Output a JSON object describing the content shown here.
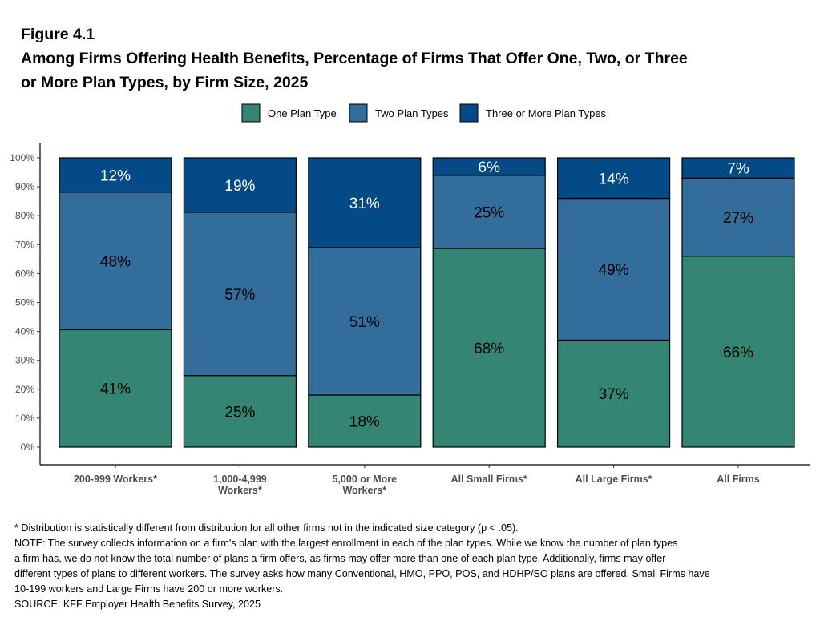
{
  "title_lines": [
    "Figure 4.1",
    "Among Firms Offering Health Benefits, Percentage of Firms That Offer One, Two, or Three",
    "or More Plan Types, by Firm Size, 2025"
  ],
  "notes": [
    "* Distribution is statistically different from distribution for all other firms not in the indicated size category (p < .05).",
    "NOTE: The survey collects information on a firm's plan with the largest enrollment in each of the plan types. While we know the number of plan types",
    "a firm has, we do not know the total number of plans a firm offers, as firms may offer more than one of each plan type. Additionally, firms may offer",
    "different types of plans to different workers. The survey asks how many Conventional, HMO, PPO, POS, and HDHP/SO plans are offered. Small Firms have",
    "10-199 workers and Large Firms have 200 or more workers.",
    "SOURCE: KFF Employer Health Benefits Survey, 2025"
  ],
  "chart_data": {
    "type": "bar",
    "stacked": true,
    "title": "Among Firms Offering Health Benefits, Percentage of Firms That Offer One, Two, or Three or More Plan Types, by Firm Size, 2025",
    "categories": [
      "200-999 Workers*",
      "1,000-4,999\nWorkers*",
      "5,000 or More\nWorkers*",
      "All Small Firms*",
      "All Large Firms*",
      "All Firms"
    ],
    "series": [
      {
        "name": "One Plan Type",
        "color": "#348573",
        "values": [
          41,
          25,
          18,
          68,
          37,
          66
        ]
      },
      {
        "name": "Two Plan Types",
        "color": "#336d9b",
        "values": [
          48,
          57,
          51,
          25,
          49,
          27
        ]
      },
      {
        "name": "Three or More Plan Types",
        "color": "#034a86",
        "values": [
          12,
          19,
          31,
          6,
          14,
          7
        ]
      }
    ],
    "data_labels": [
      [
        "41%",
        "25%",
        "18%",
        "68%",
        "37%",
        "66%"
      ],
      [
        "48%",
        "57%",
        "51%",
        "25%",
        "49%",
        "27%"
      ],
      [
        "12%",
        "19%",
        "31%",
        "6%",
        "14%",
        "7%"
      ]
    ],
    "yticks": [
      "0%",
      "10%",
      "20%",
      "30%",
      "40%",
      "50%",
      "60%",
      "70%",
      "80%",
      "90%",
      "100%"
    ],
    "ylim": [
      0,
      100
    ],
    "xlabel": "",
    "ylabel": "",
    "grid": false,
    "legend_position": "top"
  }
}
